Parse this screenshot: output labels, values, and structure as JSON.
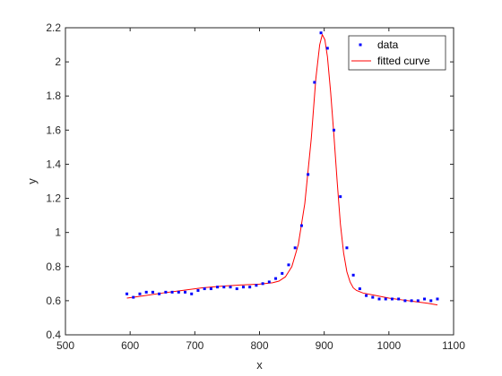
{
  "chart_data": {
    "type": "scatter",
    "title": "",
    "xlabel": "x",
    "ylabel": "y",
    "xlim": [
      500,
      1100
    ],
    "ylim": [
      0.4,
      2.2
    ],
    "xticks": [
      "500",
      "600",
      "700",
      "800",
      "900",
      "1000",
      "1100"
    ],
    "yticks": [
      "0.4",
      "0.6",
      "0.8",
      "1",
      "1.2",
      "1.4",
      "1.6",
      "1.8",
      "2",
      "2.2"
    ],
    "grid": false,
    "legend_position": "top-right",
    "colors": {
      "data": "#0000ff",
      "fit": "#ff0000"
    },
    "series": [
      {
        "name": "data",
        "kind": "markers",
        "x": [
          595,
          605,
          615,
          625,
          635,
          645,
          655,
          665,
          675,
          685,
          695,
          705,
          715,
          725,
          735,
          745,
          755,
          765,
          775,
          785,
          795,
          805,
          815,
          825,
          835,
          845,
          855,
          865,
          875,
          885,
          895,
          905,
          915,
          925,
          935,
          945,
          955,
          965,
          975,
          985,
          995,
          1005,
          1015,
          1025,
          1035,
          1045,
          1055,
          1065,
          1075
        ],
        "y": [
          0.64,
          0.62,
          0.64,
          0.65,
          0.65,
          0.64,
          0.65,
          0.65,
          0.65,
          0.65,
          0.64,
          0.66,
          0.67,
          0.67,
          0.68,
          0.68,
          0.68,
          0.67,
          0.68,
          0.68,
          0.69,
          0.7,
          0.71,
          0.73,
          0.76,
          0.81,
          0.91,
          1.04,
          1.34,
          1.88,
          2.17,
          2.08,
          1.6,
          1.21,
          0.91,
          0.75,
          0.67,
          0.63,
          0.62,
          0.61,
          0.61,
          0.61,
          0.61,
          0.6,
          0.6,
          0.6,
          0.61,
          0.6,
          0.61
        ]
      },
      {
        "name": "fitted curve",
        "kind": "line",
        "x": [
          595,
          620,
          650,
          680,
          710,
          740,
          770,
          800,
          820,
          830,
          840,
          850,
          860,
          870,
          880,
          887,
          893,
          897,
          901,
          905,
          910,
          915,
          920,
          925,
          930,
          935,
          940,
          945,
          950,
          960,
          980,
          1000,
          1020,
          1040,
          1060,
          1075
        ],
        "y": [
          0.615,
          0.628,
          0.645,
          0.66,
          0.675,
          0.685,
          0.692,
          0.697,
          0.705,
          0.715,
          0.74,
          0.8,
          0.93,
          1.17,
          1.55,
          1.9,
          2.1,
          2.16,
          2.13,
          2.03,
          1.82,
          1.57,
          1.3,
          1.05,
          0.88,
          0.77,
          0.71,
          0.675,
          0.66,
          0.645,
          0.63,
          0.615,
          0.605,
          0.595,
          0.585,
          0.575
        ]
      }
    ]
  }
}
